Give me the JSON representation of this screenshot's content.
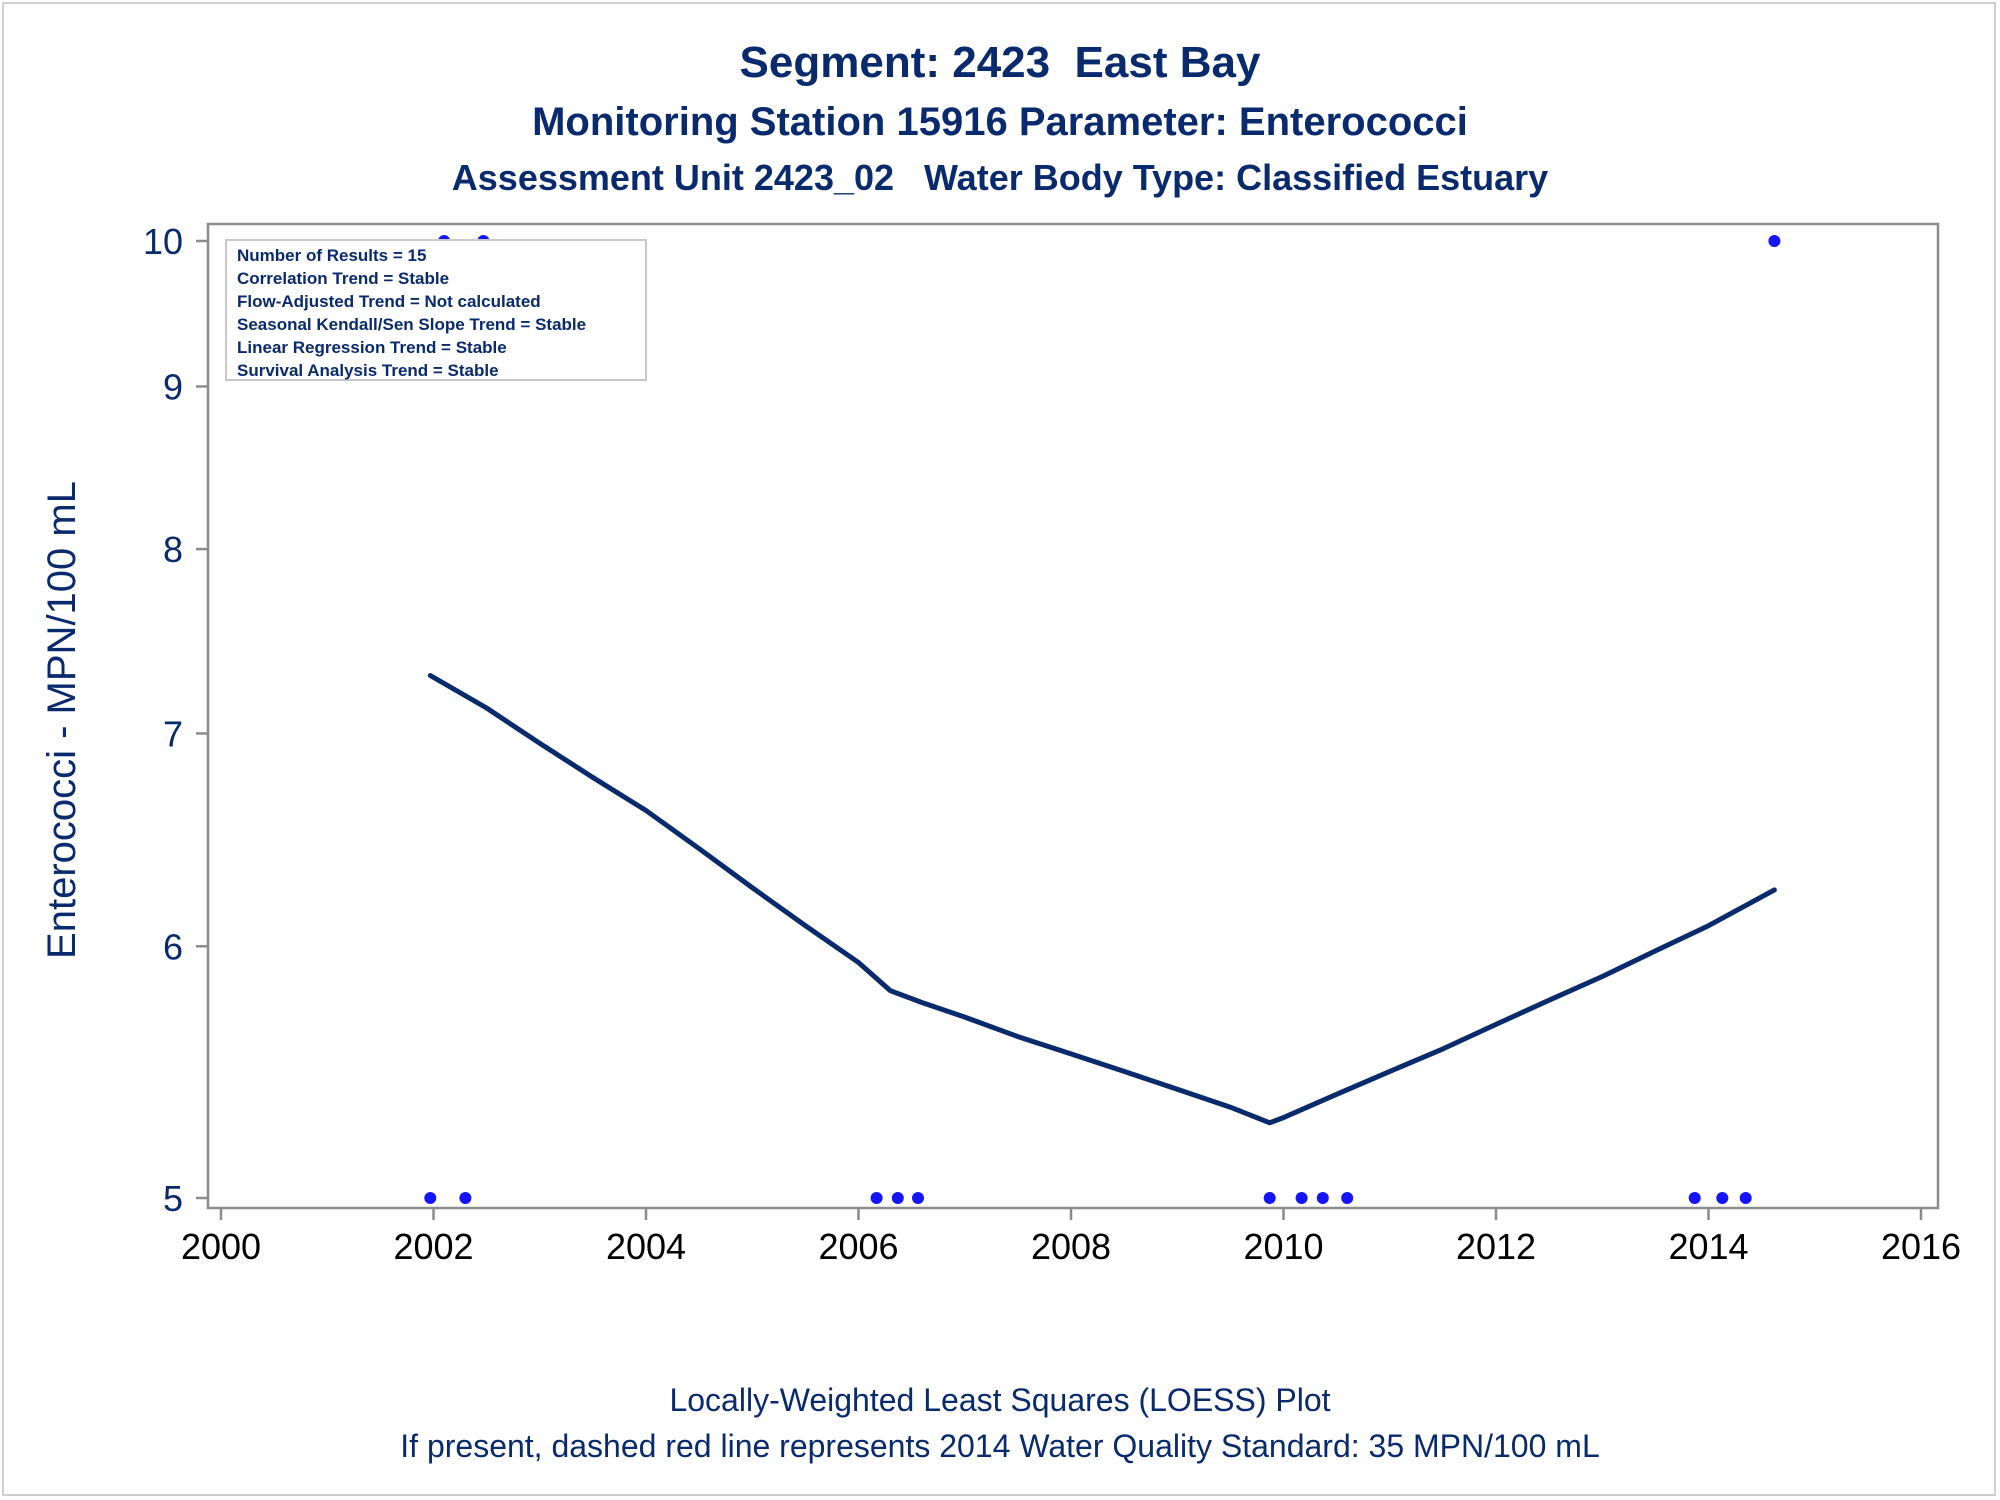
{
  "titles": {
    "line1": "Segment: 2423  East Bay",
    "line2": "Monitoring Station 15916 Parameter: Enterococci",
    "line3": "Assessment Unit 2423_02   Water Body Type: Classified Estuary"
  },
  "footer": {
    "line1": "Locally-Weighted Least Squares (LOESS) Plot",
    "line2": "If present, dashed red line represents 2014 Water Quality Standard: 35 MPN/100 mL"
  },
  "stats_box": [
    "Number of Results = 15",
    "Correlation Trend = Stable",
    "Flow-Adjusted Trend = Not calculated",
    "Seasonal Kendall/Sen Slope Trend = Stable",
    "Linear Regression Trend = Stable",
    "Survival Analysis Trend = Stable"
  ],
  "colors": {
    "text": "#0a2a6e",
    "line": "#0a2a6e",
    "points": "#1414ff",
    "axis": "#8c8c8c"
  },
  "chart_data": {
    "type": "scatter",
    "xlabel": "",
    "ylabel": "Enterococci - MPN/100 mL",
    "y_scale": "log",
    "xlim": [
      2000,
      2016
    ],
    "ylim": [
      5,
      10
    ],
    "x_ticks": [
      "2000",
      "2002",
      "2004",
      "2006",
      "2008",
      "2010",
      "2012",
      "2014",
      "2016"
    ],
    "y_ticks": [
      "5",
      "6",
      "7",
      "8",
      "9",
      "10"
    ],
    "grid": false,
    "series": [
      {
        "type": "scatter",
        "x": [
          2001.97,
          2002.1,
          2002.3,
          2002.47,
          2006.17,
          2006.37,
          2006.56,
          2009.87,
          2010.17,
          2010.37,
          2010.6,
          2013.87,
          2014.13,
          2014.35,
          2014.62
        ],
        "y": [
          5,
          10,
          5,
          10,
          5,
          5,
          5,
          5,
          5,
          5,
          5,
          5,
          5,
          5,
          10
        ]
      },
      {
        "type": "line",
        "x": [
          2001.97,
          2002.5,
          2003.0,
          2003.5,
          2004.0,
          2004.5,
          2005.0,
          2005.5,
          2006.0,
          2006.3,
          2006.6,
          2007.0,
          2007.5,
          2008.0,
          2008.5,
          2009.0,
          2009.5,
          2009.87,
          2010.0,
          2010.5,
          2011.0,
          2011.5,
          2012.0,
          2012.5,
          2013.0,
          2013.5,
          2014.0,
          2014.62
        ],
        "y": [
          7.3,
          7.13,
          6.95,
          6.78,
          6.62,
          6.44,
          6.26,
          6.09,
          5.93,
          5.81,
          5.76,
          5.7,
          5.62,
          5.55,
          5.48,
          5.41,
          5.34,
          5.28,
          5.3,
          5.39,
          5.48,
          5.57,
          5.67,
          5.77,
          5.87,
          5.98,
          6.09,
          6.25
        ]
      }
    ]
  }
}
